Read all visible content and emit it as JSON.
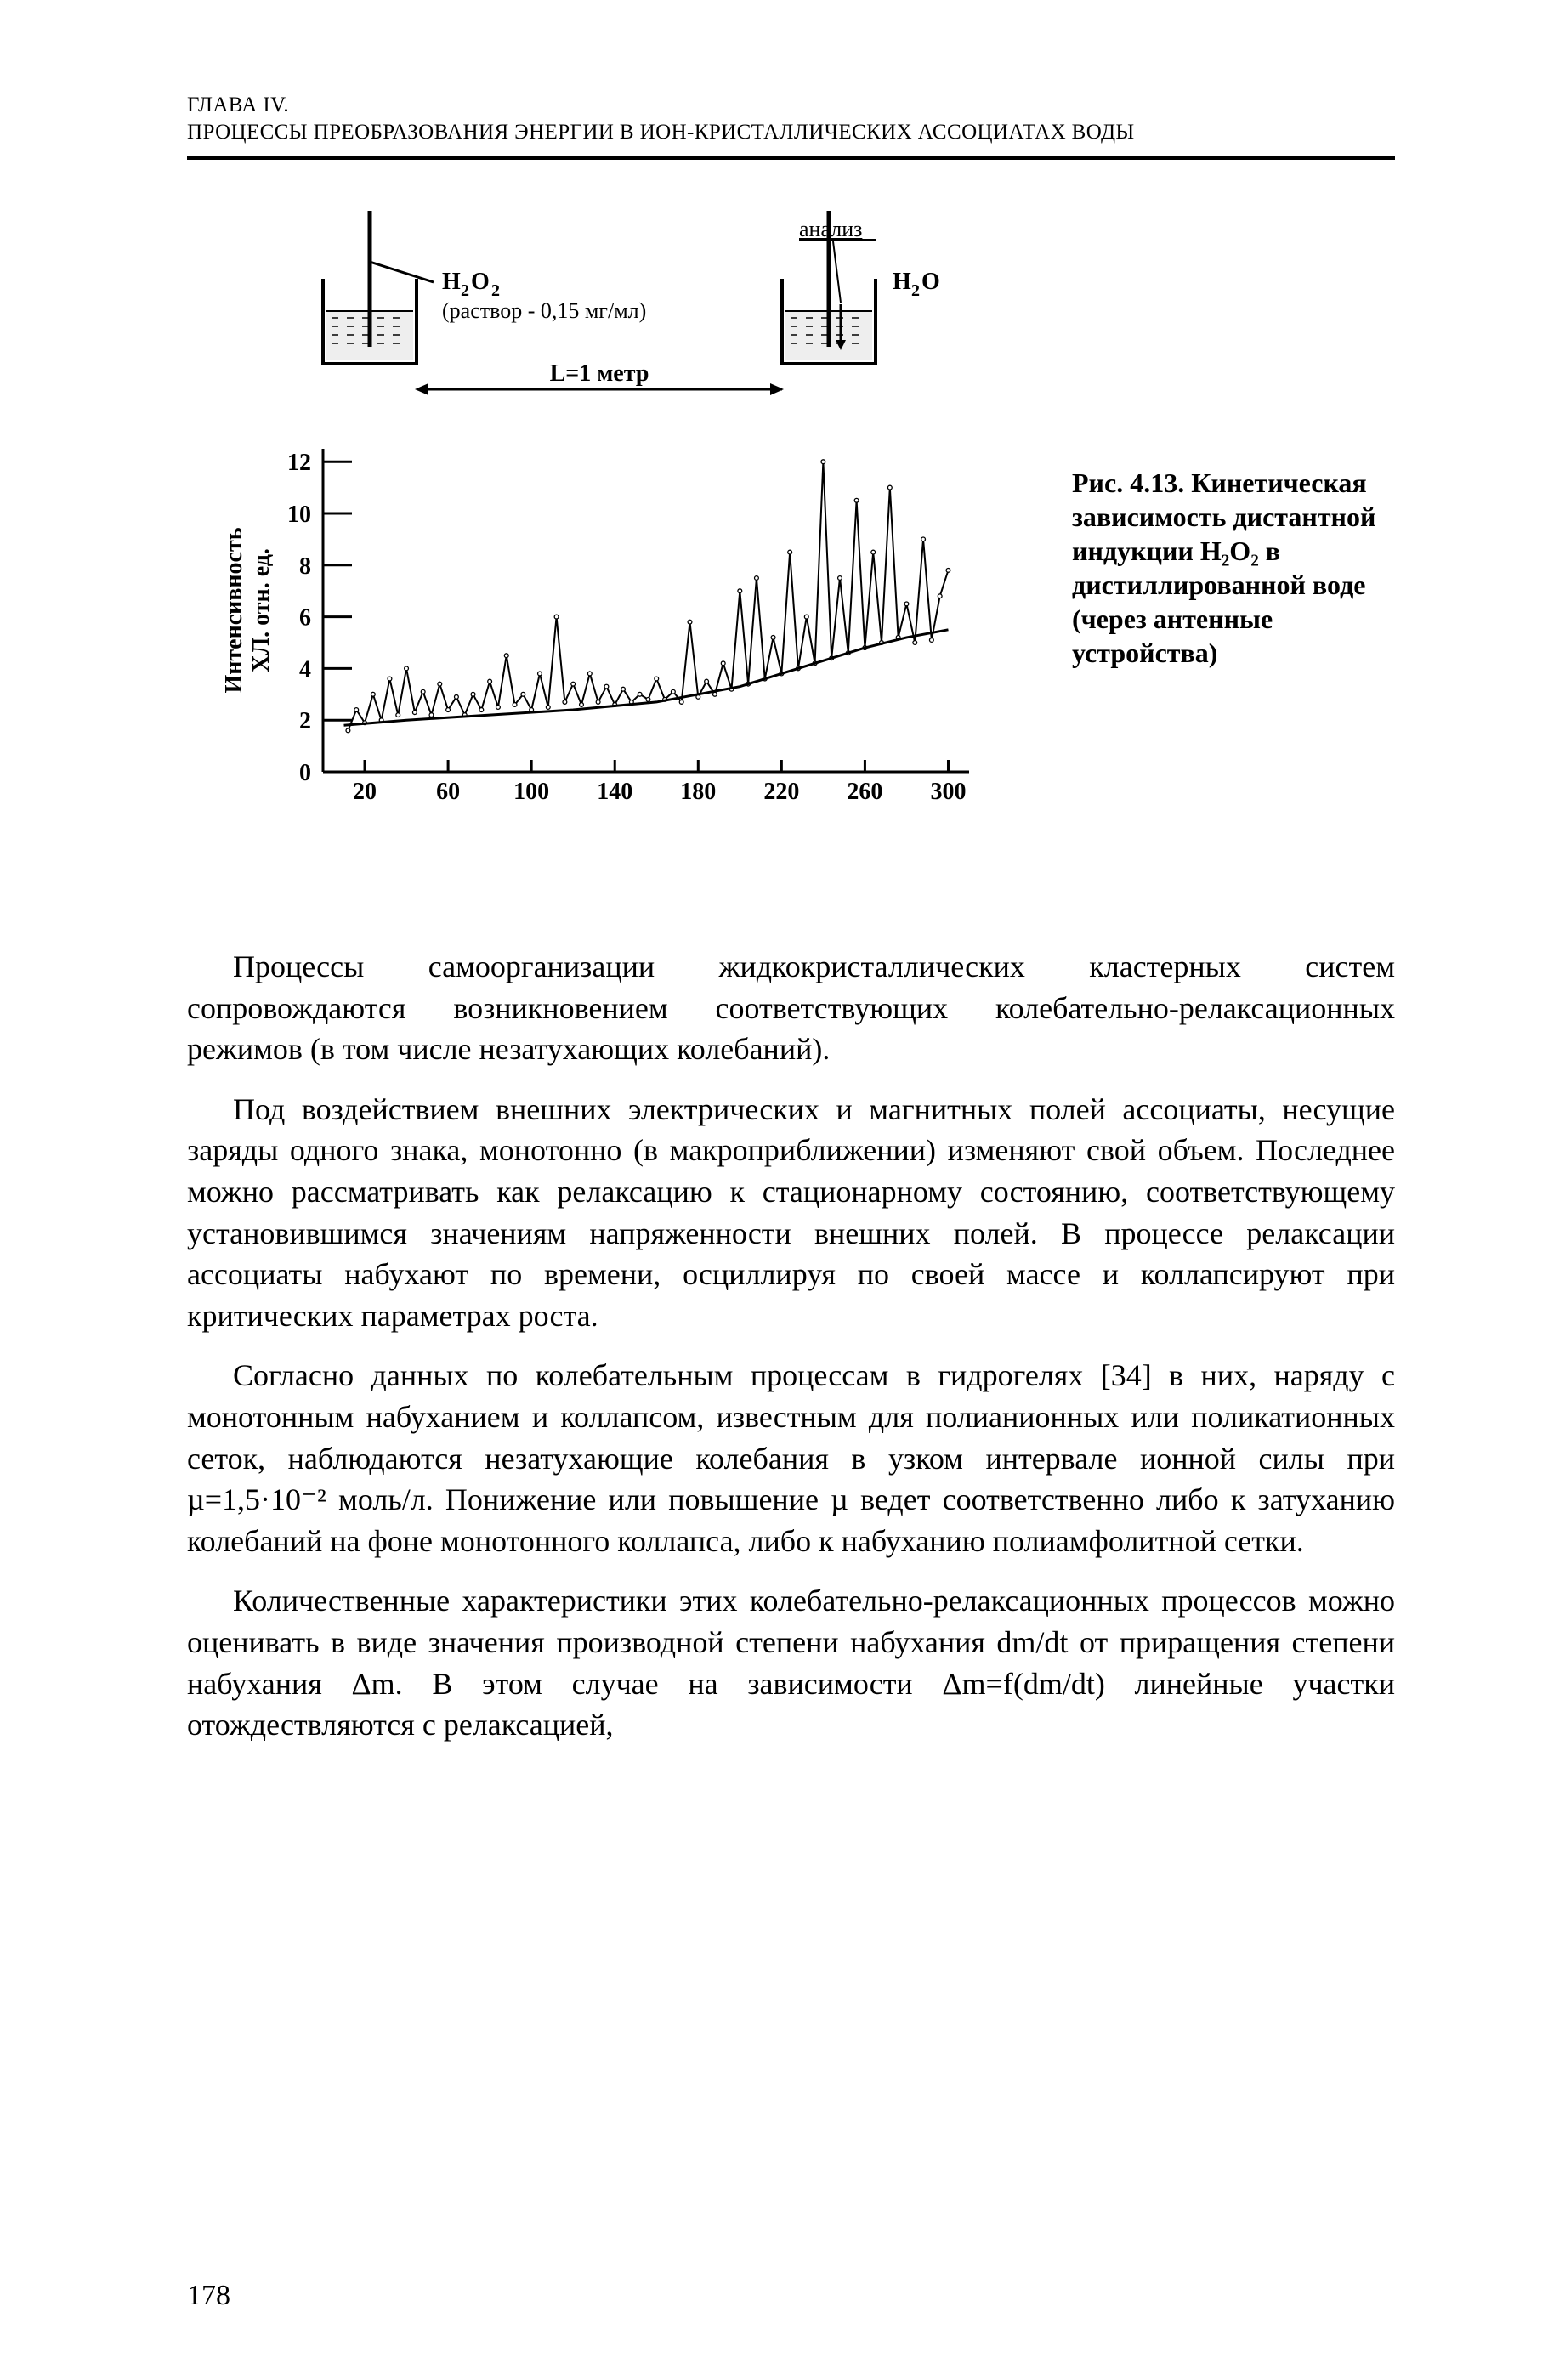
{
  "header": {
    "line1": "ГЛАВА IV.",
    "line2": "ПРОЦЕССЫ ПРЕОБРАЗОВАНИЯ ЭНЕРГИИ В ИОН-КРИСТАЛЛИЧЕСКИХ АССОЦИАТАХ ВОДЫ"
  },
  "figure": {
    "diagram": {
      "label_h2o2": "H₂O₂",
      "label_h2o": "H₂O",
      "label_solution": "(раствор - 0,15 мг/мл)",
      "label_analysis": "анализ",
      "label_distance": "L=1 метр",
      "stroke_color": "#000000",
      "fill_liquid": "#eeeeee",
      "fontsize_label": 28,
      "fontsize_small": 26
    },
    "chart": {
      "type": "line",
      "ylabel_line1": "Интенсивность",
      "ylabel_line2": "ХЛ. отн. ед.",
      "xlim": [
        0,
        310
      ],
      "ylim": [
        0,
        12.5
      ],
      "xticks": [
        20,
        60,
        100,
        140,
        180,
        220,
        260,
        300
      ],
      "yticks": [
        0,
        2,
        4,
        6,
        8,
        10,
        12
      ],
      "axis_color": "#000000",
      "line_color": "#000000",
      "background_color": "#ffffff",
      "label_fontsize": 28,
      "tick_fontsize": 28,
      "line_width": 2,
      "trend_points": [
        {
          "x": 10,
          "y": 1.8
        },
        {
          "x": 40,
          "y": 2.0
        },
        {
          "x": 80,
          "y": 2.2
        },
        {
          "x": 120,
          "y": 2.4
        },
        {
          "x": 160,
          "y": 2.7
        },
        {
          "x": 180,
          "y": 3.0
        },
        {
          "x": 200,
          "y": 3.3
        },
        {
          "x": 220,
          "y": 3.8
        },
        {
          "x": 240,
          "y": 4.3
        },
        {
          "x": 260,
          "y": 4.8
        },
        {
          "x": 280,
          "y": 5.2
        },
        {
          "x": 300,
          "y": 5.5
        }
      ],
      "data_points": [
        {
          "x": 12,
          "y": 1.6
        },
        {
          "x": 16,
          "y": 2.4
        },
        {
          "x": 20,
          "y": 1.9
        },
        {
          "x": 24,
          "y": 3.0
        },
        {
          "x": 28,
          "y": 2.0
        },
        {
          "x": 32,
          "y": 3.6
        },
        {
          "x": 36,
          "y": 2.2
        },
        {
          "x": 40,
          "y": 4.0
        },
        {
          "x": 44,
          "y": 2.3
        },
        {
          "x": 48,
          "y": 3.1
        },
        {
          "x": 52,
          "y": 2.2
        },
        {
          "x": 56,
          "y": 3.4
        },
        {
          "x": 60,
          "y": 2.4
        },
        {
          "x": 64,
          "y": 2.9
        },
        {
          "x": 68,
          "y": 2.2
        },
        {
          "x": 72,
          "y": 3.0
        },
        {
          "x": 76,
          "y": 2.4
        },
        {
          "x": 80,
          "y": 3.5
        },
        {
          "x": 84,
          "y": 2.5
        },
        {
          "x": 88,
          "y": 4.5
        },
        {
          "x": 92,
          "y": 2.6
        },
        {
          "x": 96,
          "y": 3.0
        },
        {
          "x": 100,
          "y": 2.4
        },
        {
          "x": 104,
          "y": 3.8
        },
        {
          "x": 108,
          "y": 2.5
        },
        {
          "x": 112,
          "y": 6.0
        },
        {
          "x": 116,
          "y": 2.7
        },
        {
          "x": 120,
          "y": 3.4
        },
        {
          "x": 124,
          "y": 2.6
        },
        {
          "x": 128,
          "y": 3.8
        },
        {
          "x": 132,
          "y": 2.7
        },
        {
          "x": 136,
          "y": 3.3
        },
        {
          "x": 140,
          "y": 2.6
        },
        {
          "x": 144,
          "y": 3.2
        },
        {
          "x": 148,
          "y": 2.7
        },
        {
          "x": 152,
          "y": 3.0
        },
        {
          "x": 156,
          "y": 2.8
        },
        {
          "x": 160,
          "y": 3.6
        },
        {
          "x": 164,
          "y": 2.8
        },
        {
          "x": 168,
          "y": 3.1
        },
        {
          "x": 172,
          "y": 2.7
        },
        {
          "x": 176,
          "y": 5.8
        },
        {
          "x": 180,
          "y": 2.9
        },
        {
          "x": 184,
          "y": 3.5
        },
        {
          "x": 188,
          "y": 3.0
        },
        {
          "x": 192,
          "y": 4.2
        },
        {
          "x": 196,
          "y": 3.2
        },
        {
          "x": 200,
          "y": 7.0
        },
        {
          "x": 204,
          "y": 3.4
        },
        {
          "x": 208,
          "y": 7.5
        },
        {
          "x": 212,
          "y": 3.6
        },
        {
          "x": 216,
          "y": 5.2
        },
        {
          "x": 220,
          "y": 3.8
        },
        {
          "x": 224,
          "y": 8.5
        },
        {
          "x": 228,
          "y": 4.0
        },
        {
          "x": 232,
          "y": 6.0
        },
        {
          "x": 236,
          "y": 4.2
        },
        {
          "x": 240,
          "y": 12.0
        },
        {
          "x": 244,
          "y": 4.4
        },
        {
          "x": 248,
          "y": 7.5
        },
        {
          "x": 252,
          "y": 4.6
        },
        {
          "x": 256,
          "y": 10.5
        },
        {
          "x": 260,
          "y": 4.8
        },
        {
          "x": 264,
          "y": 8.5
        },
        {
          "x": 268,
          "y": 5.0
        },
        {
          "x": 272,
          "y": 11.0
        },
        {
          "x": 276,
          "y": 5.2
        },
        {
          "x": 280,
          "y": 6.5
        },
        {
          "x": 284,
          "y": 5.0
        },
        {
          "x": 288,
          "y": 9.0
        },
        {
          "x": 292,
          "y": 5.1
        },
        {
          "x": 296,
          "y": 6.8
        },
        {
          "x": 300,
          "y": 7.8
        }
      ]
    },
    "caption": "Рис. 4.13. Кинетическая зависимость дистантной индукции H₂O₂ в дистиллированной воде (через антенные устройства)"
  },
  "paragraphs": [
    "Процессы самоорганизации жидкокристаллических кластерных систем сопровождаются возникновением соответствующих колебательно-релаксационных режимов (в том числе незатухающих колебаний).",
    "Под воздействием внешних электрических и магнитных полей ассоциаты, несущие заряды одного знака, монотонно (в макроприближении) изменяют свой объем. Последнее можно рассматривать как релаксацию к стационарному состоянию, соответствующему установившимся значениям напряженности внешних полей. В процессе релаксации ассоциаты набухают по времени, осциллируя по своей массе и коллапсируют при критических параметрах роста.",
    "Согласно данных по колебательным процессам в гидрогелях [34] в них, наряду с монотонным набуханием и коллапсом, известным для полианионных или поликатионных сеток, наблюдаются незатухающие колебания в узком интервале ионной силы при µ=1,5·10⁻² моль/л. Понижение или повышение µ ведет соответственно либо к затуханию колебаний на фоне монотонного коллапса, либо к набуханию полиамфолитной сетки.",
    "Количественные характеристики этих колебательно-релаксационных процессов можно оценивать в виде значения производной степени набухания dm/dt от приращения степени набухания Δm. В этом случае на зависимости Δm=f(dm/dt) линейные участки отождествляются с релаксацией,"
  ],
  "page_number": "178",
  "colors": {
    "text": "#000000",
    "background": "#ffffff"
  }
}
